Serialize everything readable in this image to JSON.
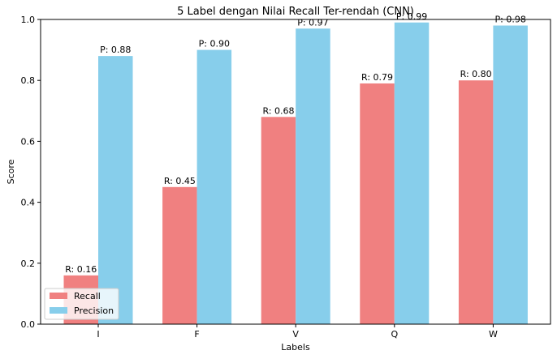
{
  "chart_data": {
    "type": "bar",
    "title": "5 Label dengan Nilai Recall Ter-rendah (CNN)",
    "xlabel": "Labels",
    "ylabel": "Score",
    "ylim": [
      0,
      1.0
    ],
    "yticks": [
      "0.0",
      "0.2",
      "0.4",
      "0.6",
      "0.8",
      "1.0"
    ],
    "categories": [
      "I",
      "F",
      "V",
      "Q",
      "W"
    ],
    "series": [
      {
        "name": "Recall",
        "color": "#f08080",
        "values": [
          0.16,
          0.45,
          0.68,
          0.79,
          0.8
        ],
        "labels": [
          "R: 0.16",
          "R: 0.45",
          "R: 0.68",
          "R: 0.79",
          "R: 0.80"
        ]
      },
      {
        "name": "Precision",
        "color": "#87ceeb",
        "values": [
          0.88,
          0.9,
          0.97,
          0.99,
          0.98
        ],
        "labels": [
          "P: 0.88",
          "P: 0.90",
          "P: 0.97",
          "P: 0.99",
          "P: 0.98"
        ]
      }
    ],
    "grid": false,
    "legend_position": "lower-left"
  }
}
